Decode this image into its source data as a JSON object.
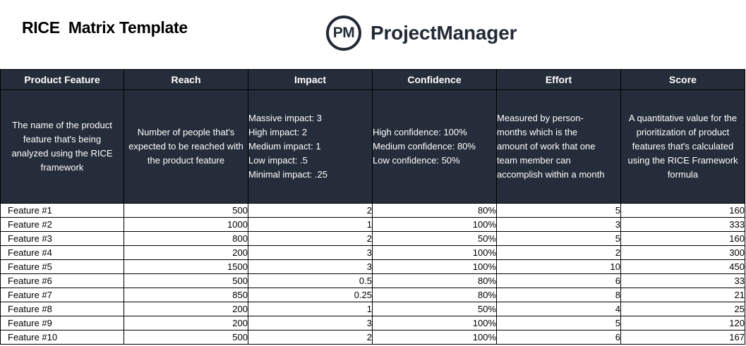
{
  "page": {
    "title": "RICE  Matrix Template",
    "brand": {
      "logo_mark": "PM",
      "name": "ProjectManager"
    }
  },
  "table": {
    "headers": [
      "Product Feature",
      "Reach",
      "Impact",
      "Confidence",
      "Effort",
      "Score"
    ],
    "descriptions": {
      "feature": "The name of the product feature that's being analyzed using the RICE framework",
      "reach": "Number of people that's expected to be reached with the product feature",
      "impact": [
        "Massive impact: 3",
        "High impact: 2",
        "Medium impact: 1",
        "Low impact: .5",
        "Minimal impact: .25"
      ],
      "confidence": [
        "High confidence: 100%",
        "Medium confidence: 80%",
        "Low confidence: 50%"
      ],
      "effort": [
        "Measured by person-",
        "months which is the",
        "amount of work that one",
        "team member can",
        "accomplish within a month"
      ],
      "score": "A quantitative value for the prioritization of product features that's calculated using the RICE Framework formula"
    },
    "rows": [
      [
        "Feature #1",
        "500",
        "2",
        "80%",
        "5",
        "160"
      ],
      [
        "Feature #2",
        "1000",
        "1",
        "100%",
        "3",
        "333"
      ],
      [
        "Feature #3",
        "800",
        "2",
        "50%",
        "5",
        "160"
      ],
      [
        "Feature #4",
        "200",
        "3",
        "100%",
        "2",
        "300"
      ],
      [
        "Feature #5",
        "1500",
        "3",
        "100%",
        "10",
        "450"
      ],
      [
        "Feature #6",
        "500",
        "0.5",
        "80%",
        "6",
        "33"
      ],
      [
        "Feature #7",
        "850",
        "0.25",
        "80%",
        "8",
        "21"
      ],
      [
        "Feature #8",
        "200",
        "1",
        "50%",
        "4",
        "25"
      ],
      [
        "Feature #9",
        "200",
        "3",
        "100%",
        "5",
        "120"
      ],
      [
        "Feature #10",
        "500",
        "2",
        "100%",
        "6",
        "167"
      ]
    ]
  },
  "colors": {
    "header_bg": "#262d3a",
    "header_text": "#ffffff",
    "brand": "#232a35"
  }
}
